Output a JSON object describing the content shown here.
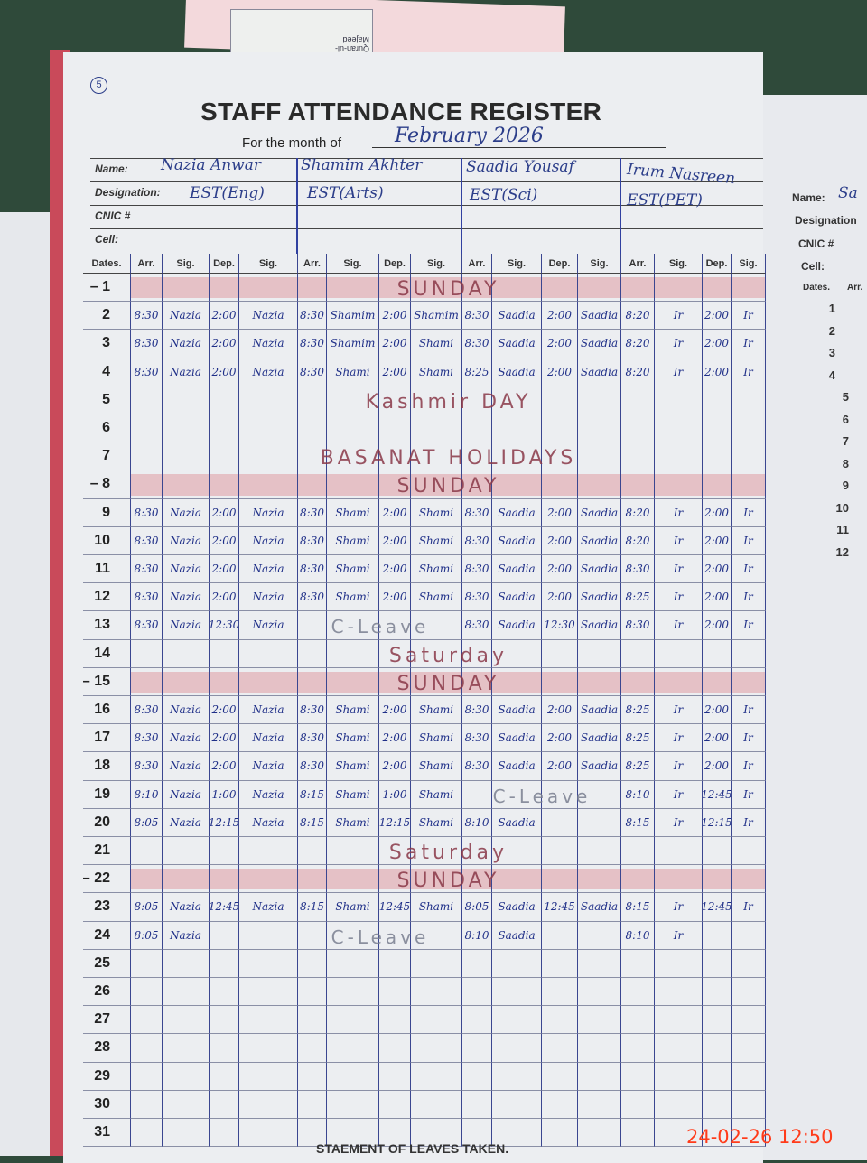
{
  "background_scrap": {
    "lines": [
      "Quran-ul-",
      "Majeed"
    ]
  },
  "page_number": "5",
  "title": "STAFF ATTENDANCE REGISTER",
  "month_label": "For the month of",
  "month_value": "February   2026",
  "header_labels": {
    "name": "Name:",
    "designation": "Designation:",
    "cnic": "CNIC #",
    "cell": "Cell:"
  },
  "staff": [
    {
      "name": "Nazia Anwar",
      "designation": "EST(Eng)"
    },
    {
      "name": "Shamim Akhter",
      "designation": "EST(Arts)"
    },
    {
      "name": "Saadia Yousaf",
      "designation": "EST(Sci)"
    },
    {
      "name": "Irum Nasreen",
      "designation": "EST(PET)"
    }
  ],
  "columns": [
    "Dates.",
    "Arr.",
    "Sig.",
    "Dep.",
    "Sig.",
    "Arr.",
    "Sig.",
    "Dep.",
    "Sig.",
    "Arr.",
    "Sig.",
    "Dep.",
    "Sig.",
    "Arr.",
    "Sig.",
    "Dep.",
    "Sig."
  ],
  "highlight_color": "#d66e78",
  "rows": [
    {
      "date": "1",
      "sunday": true,
      "note": "SUNDAY"
    },
    {
      "date": "2",
      "cells": [
        "8:30",
        "Nazia",
        "2:00",
        "Nazia",
        "8:30",
        "Shamim",
        "2:00",
        "Shamim",
        "8:30",
        "Saadia",
        "2:00",
        "Saadia",
        "8:20",
        "Ir",
        "2:00",
        "Ir"
      ]
    },
    {
      "date": "3",
      "cells": [
        "8:30",
        "Nazia",
        "2:00",
        "Nazia",
        "8:30",
        "Shamim",
        "2:00",
        "Shami",
        "8:30",
        "Saadia",
        "2:00",
        "Saadia",
        "8:20",
        "Ir",
        "2:00",
        "Ir"
      ]
    },
    {
      "date": "4",
      "cells": [
        "8:30",
        "Nazia",
        "2:00",
        "Nazia",
        "8:30",
        "Shami",
        "2:00",
        "Shami",
        "8:25",
        "Saadia",
        "2:00",
        "Saadia",
        "8:20",
        "Ir",
        "2:00",
        "Ir"
      ]
    },
    {
      "date": "5",
      "note": "Kashmir DAY"
    },
    {
      "date": "6"
    },
    {
      "date": "7",
      "note": "BASANAT HOLIDAYS"
    },
    {
      "date": "8",
      "sunday": true,
      "note": "SUNDAY"
    },
    {
      "date": "9",
      "cells": [
        "8:30",
        "Nazia",
        "2:00",
        "Nazia",
        "8:30",
        "Shami",
        "2:00",
        "Shami",
        "8:30",
        "Saadia",
        "2:00",
        "Saadia",
        "8:20",
        "Ir",
        "2:00",
        "Ir"
      ]
    },
    {
      "date": "10",
      "cells": [
        "8:30",
        "Nazia",
        "2:00",
        "Nazia",
        "8:30",
        "Shami",
        "2:00",
        "Shami",
        "8:30",
        "Saadia",
        "2:00",
        "Saadia",
        "8:20",
        "Ir",
        "2:00",
        "Ir"
      ]
    },
    {
      "date": "11",
      "cells": [
        "8:30",
        "Nazia",
        "2:00",
        "Nazia",
        "8:30",
        "Shami",
        "2:00",
        "Shami",
        "8:30",
        "Saadia",
        "2:00",
        "Saadia",
        "8:30",
        "Ir",
        "2:00",
        "Ir"
      ]
    },
    {
      "date": "12",
      "cells": [
        "8:30",
        "Nazia",
        "2:00",
        "Nazia",
        "8:30",
        "Shami",
        "2:00",
        "Shami",
        "8:30",
        "Saadia",
        "2:00",
        "Saadia",
        "8:25",
        "Ir",
        "2:00",
        "Ir"
      ]
    },
    {
      "date": "13",
      "cells": [
        "8:30",
        "Nazia",
        "12:30",
        "Nazia",
        "",
        "",
        "",
        "",
        "8:30",
        "Saadia",
        "12:30",
        "Saadia",
        "8:30",
        "Ir",
        "2:00",
        "Ir"
      ],
      "leave": {
        "staff": 1,
        "text": "C-Leave"
      }
    },
    {
      "date": "14",
      "note": "Saturday"
    },
    {
      "date": "15",
      "sunday": true,
      "note": "SUNDAY"
    },
    {
      "date": "16",
      "cells": [
        "8:30",
        "Nazia",
        "2:00",
        "Nazia",
        "8:30",
        "Shami",
        "2:00",
        "Shami",
        "8:30",
        "Saadia",
        "2:00",
        "Saadia",
        "8:25",
        "Ir",
        "2:00",
        "Ir"
      ]
    },
    {
      "date": "17",
      "cells": [
        "8:30",
        "Nazia",
        "2:00",
        "Nazia",
        "8:30",
        "Shami",
        "2:00",
        "Shami",
        "8:30",
        "Saadia",
        "2:00",
        "Saadia",
        "8:25",
        "Ir",
        "2:00",
        "Ir"
      ]
    },
    {
      "date": "18",
      "cells": [
        "8:30",
        "Nazia",
        "2:00",
        "Nazia",
        "8:30",
        "Shami",
        "2:00",
        "Shami",
        "8:30",
        "Saadia",
        "2:00",
        "Saadia",
        "8:25",
        "Ir",
        "2:00",
        "Ir"
      ]
    },
    {
      "date": "19",
      "cells": [
        "8:10",
        "Nazia",
        "1:00",
        "Nazia",
        "8:15",
        "Shami",
        "1:00",
        "Shami",
        "",
        "",
        "",
        "",
        "8:10",
        "Ir",
        "12:45",
        "Ir"
      ],
      "leave": {
        "staff": 2,
        "text": "C-Leave"
      }
    },
    {
      "date": "20",
      "cells": [
        "8:05",
        "Nazia",
        "12:15",
        "Nazia",
        "8:15",
        "Shami",
        "12:15",
        "Shami",
        "8:10",
        "Saadia",
        "",
        "",
        "8:15",
        "Ir",
        "12:15",
        "Ir"
      ]
    },
    {
      "date": "21",
      "note": "Saturday"
    },
    {
      "date": "22",
      "sunday": true,
      "note": "SUNDAY"
    },
    {
      "date": "23",
      "cells": [
        "8:05",
        "Nazia",
        "12:45",
        "Nazia",
        "8:15",
        "Shami",
        "12:45",
        "Shami",
        "8:05",
        "Saadia",
        "12:45",
        "Saadia",
        "8:15",
        "Ir",
        "12:45",
        "Ir"
      ]
    },
    {
      "date": "24",
      "cells": [
        "8:05",
        "Nazia",
        "",
        "",
        "",
        "",
        "",
        "",
        "8:10",
        "Saadia",
        "",
        "",
        "8:10",
        "Ir",
        "",
        ""
      ],
      "leave": {
        "staff": 1,
        "text": "C-Leave"
      }
    },
    {
      "date": "25"
    },
    {
      "date": "26"
    },
    {
      "date": "27"
    },
    {
      "date": "28"
    },
    {
      "date": "29"
    },
    {
      "date": "30"
    },
    {
      "date": "31"
    }
  ],
  "right_page": {
    "name_label": "Name:",
    "name_value": "Sa",
    "designation_label": "Designation",
    "cnic_label": "CNIC #",
    "cell_label": "Cell:",
    "dates_label": "Dates.",
    "arr_label": "Arr.",
    "dates": [
      "1",
      "2",
      "3",
      "4",
      "5",
      "6",
      "7",
      "8",
      "9",
      "10",
      "11",
      "12"
    ]
  },
  "footer": "STAEMENT OF LEAVES TAKEN.",
  "timestamp": "24-02-26  12:50"
}
